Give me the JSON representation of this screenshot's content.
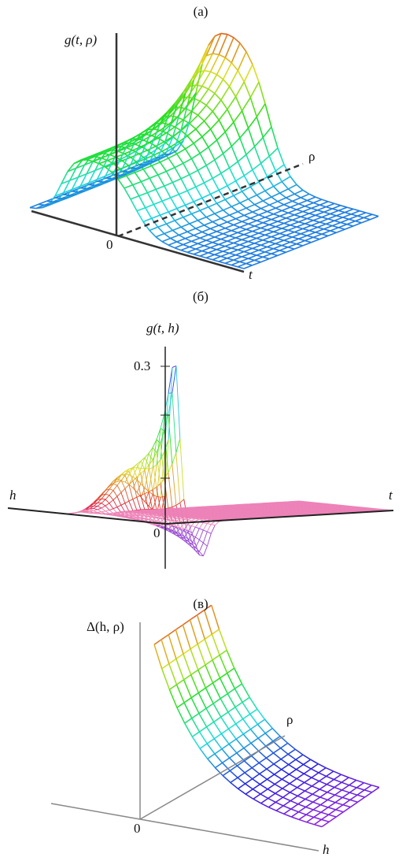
{
  "panels": [
    {
      "label": "(а)",
      "z_axis": "g(t, ρ)",
      "depth_axis": "ρ",
      "origin": "0",
      "x_axis": "t"
    },
    {
      "label": "(б)",
      "z_axis": "g(t, h)",
      "z_tick": "0.3",
      "left_axis": "h",
      "x_axis": "t",
      "origin": "0"
    },
    {
      "label": "(в)",
      "z_axis": "Δ(h, ρ)",
      "depth_axis": "ρ",
      "origin": "0",
      "x_axis": "h"
    }
  ]
}
